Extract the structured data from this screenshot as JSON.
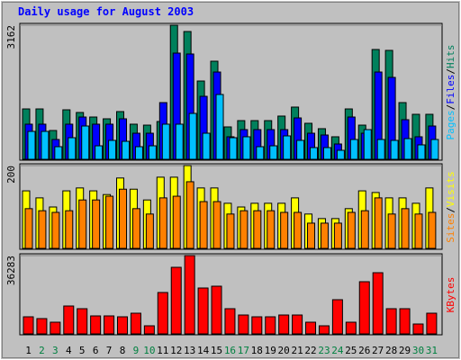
{
  "chart_data": [
    {
      "type": "bar",
      "title": "Daily usage for August 2003",
      "ylim": [
        0,
        3162
      ],
      "yticks": [
        3162
      ],
      "legend_separator": "/",
      "series": [
        {
          "name": "Hits",
          "color": "#00805c",
          "values": [
            1188,
            1188,
            679,
            1167,
            1104,
            997,
            955,
            1125,
            828,
            806,
            891,
            3162,
            3013,
            1846,
            2313,
            764,
            912,
            912,
            912,
            1019,
            1231,
            849,
            722,
            531,
            1188,
            806,
            2589,
            2568,
            1337,
            1061,
            1061
          ]
        },
        {
          "name": "Files",
          "color": "#0000ff",
          "values": [
            828,
            828,
            467,
            828,
            997,
            828,
            828,
            955,
            615,
            615,
            1337,
            2504,
            2483,
            1485,
            2058,
            531,
            700,
            700,
            700,
            700,
            976,
            615,
            573,
            361,
            997,
            615,
            2058,
            1931,
            934,
            531,
            785
          ]
        },
        {
          "name": "Pages",
          "color": "#00c0ff",
          "values": [
            658,
            658,
            297,
            509,
            785,
            318,
            446,
            424,
            297,
            318,
            828,
            828,
            1082,
            615,
            1528,
            509,
            531,
            297,
            318,
            552,
            446,
            276,
            276,
            212,
            467,
            700,
            467,
            446,
            488,
            340,
            467
          ]
        }
      ]
    },
    {
      "type": "bar",
      "ylim": [
        0,
        200
      ],
      "yticks": [
        200
      ],
      "legend_separator": "/",
      "series": [
        {
          "name": "Visits",
          "color": "#ffff00",
          "values": [
            139,
            122,
            100,
            139,
            146,
            139,
            130,
            170,
            143,
            117,
            172,
            172,
            200,
            146,
            146,
            109,
            100,
            109,
            109,
            109,
            122,
            83,
            72,
            72,
            96,
            139,
            135,
            122,
            122,
            109,
            146
          ]
        },
        {
          "name": "Sites",
          "color": "#ff8000",
          "values": [
            96,
            91,
            87,
            91,
            117,
            117,
            126,
            143,
            96,
            83,
            122,
            126,
            161,
            113,
            113,
            83,
            91,
            91,
            91,
            87,
            87,
            61,
            61,
            61,
            87,
            91,
            122,
            83,
            96,
            83,
            87
          ]
        }
      ]
    },
    {
      "type": "bar",
      "ylim": [
        0,
        36283
      ],
      "yticks": [
        36283
      ],
      "categories": [
        "1",
        "2",
        "3",
        "4",
        "5",
        "6",
        "7",
        "8",
        "9",
        "10",
        "11",
        "12",
        "13",
        "14",
        "15",
        "16",
        "17",
        "18",
        "19",
        "20",
        "21",
        "22",
        "23",
        "24",
        "25",
        "26",
        "27",
        "28",
        "29",
        "30",
        "31"
      ],
      "category_colors": [
        "#000000",
        "#008040",
        "#008040",
        "#000000",
        "#000000",
        "#000000",
        "#000000",
        "#000000",
        "#008040",
        "#008040",
        "#000000",
        "#000000",
        "#000000",
        "#000000",
        "#000000",
        "#008040",
        "#008040",
        "#000000",
        "#000000",
        "#000000",
        "#000000",
        "#000000",
        "#008040",
        "#008040",
        "#000000",
        "#000000",
        "#000000",
        "#000000",
        "#000000",
        "#008040",
        "#008040"
      ],
      "series": [
        {
          "name": "KBytes",
          "color": "#ff0000",
          "values": [
            7923,
            7089,
            5421,
            12927,
            11676,
            8340,
            8340,
            7923,
            9591,
            3753,
            19182,
            30858,
            36283,
            21267,
            22101,
            11676,
            8757,
            7923,
            7923,
            8757,
            8757,
            5421,
            3753,
            15846,
            5421,
            24186,
            28356,
            11676,
            11676,
            4587,
            9591
          ]
        }
      ]
    }
  ]
}
